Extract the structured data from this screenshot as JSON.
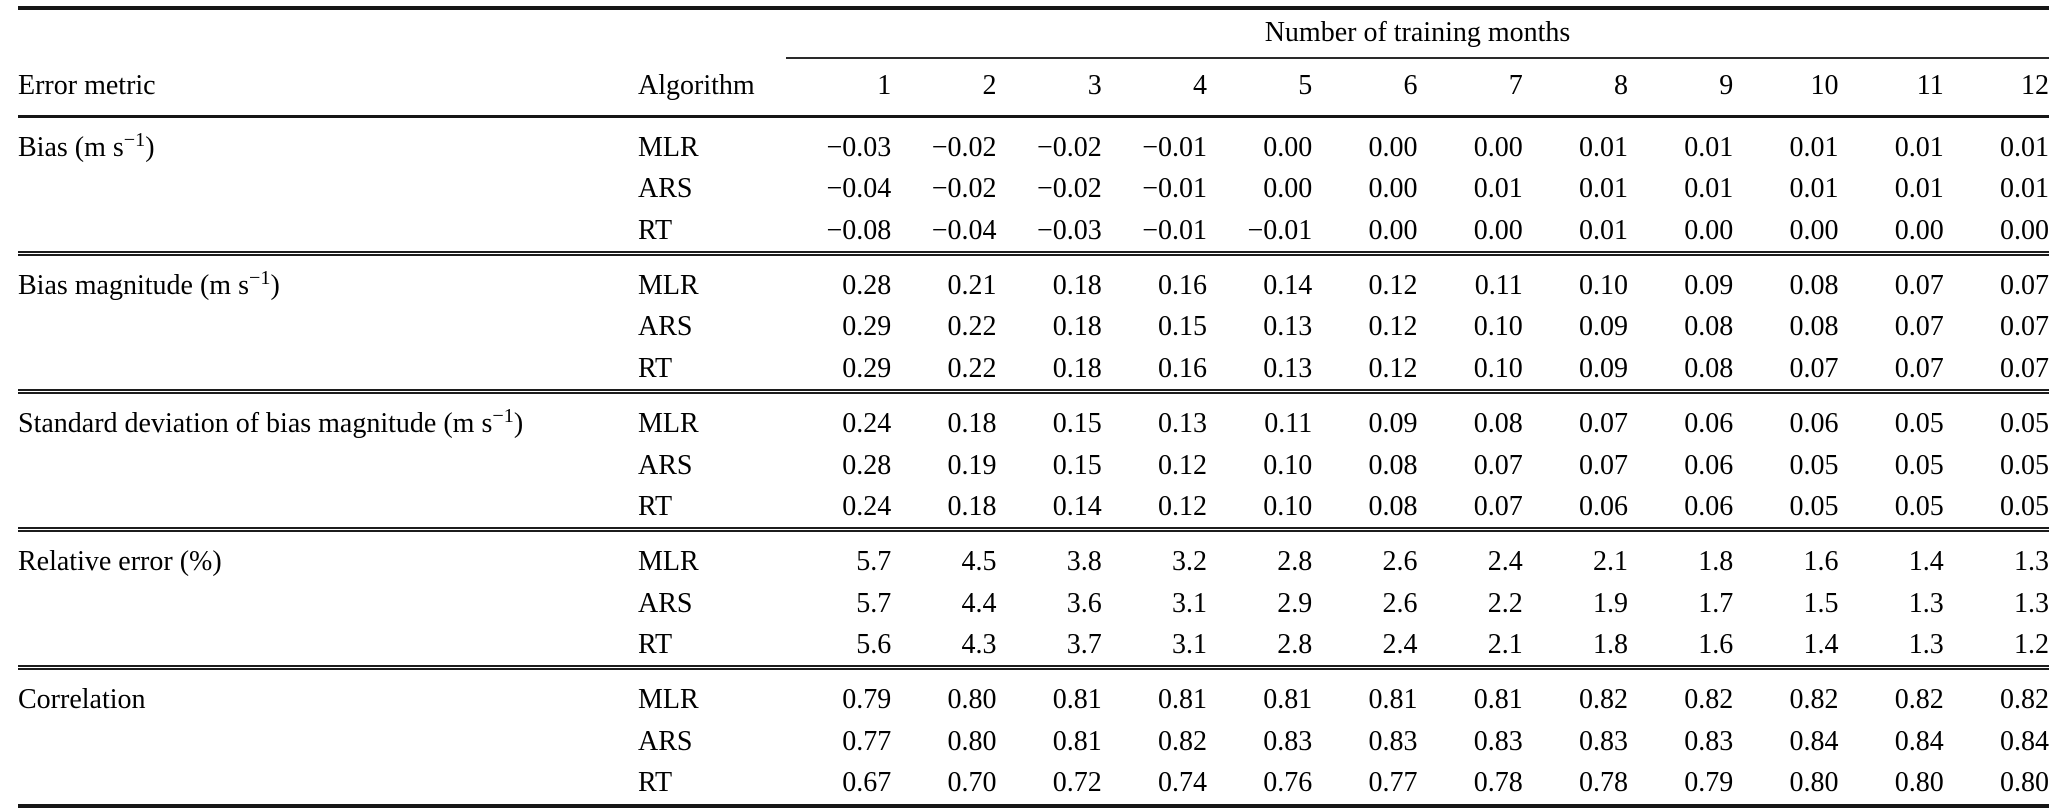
{
  "colors": {
    "background": "#ffffff",
    "text": "#000000",
    "rule": "#161616"
  },
  "chart_data": {
    "type": "table",
    "col_group_header": "Number of training months",
    "col_headers": {
      "metric": "Error metric",
      "algorithm": "Algorithm",
      "months": [
        "1",
        "2",
        "3",
        "4",
        "5",
        "6",
        "7",
        "8",
        "9",
        "10",
        "11",
        "12"
      ]
    },
    "groups": [
      {
        "metric_full": "Bias (m s⁻¹)",
        "metric_pre": "Bias (m s",
        "metric_sup": "−1",
        "metric_post": ")",
        "rows": [
          {
            "algorithm": "MLR",
            "values": [
              "−0.03",
              "−0.02",
              "−0.02",
              "−0.01",
              "0.00",
              "0.00",
              "0.00",
              "0.01",
              "0.01",
              "0.01",
              "0.01",
              "0.01"
            ]
          },
          {
            "algorithm": "ARS",
            "values": [
              "−0.04",
              "−0.02",
              "−0.02",
              "−0.01",
              "0.00",
              "0.00",
              "0.01",
              "0.01",
              "0.01",
              "0.01",
              "0.01",
              "0.01"
            ]
          },
          {
            "algorithm": "RT",
            "values": [
              "−0.08",
              "−0.04",
              "−0.03",
              "−0.01",
              "−0.01",
              "0.00",
              "0.00",
              "0.01",
              "0.00",
              "0.00",
              "0.00",
              "0.00"
            ]
          }
        ]
      },
      {
        "metric_full": "Bias magnitude (m s⁻¹)",
        "metric_pre": "Bias magnitude (m s",
        "metric_sup": "−1",
        "metric_post": ")",
        "rows": [
          {
            "algorithm": "MLR",
            "values": [
              "0.28",
              "0.21",
              "0.18",
              "0.16",
              "0.14",
              "0.12",
              "0.11",
              "0.10",
              "0.09",
              "0.08",
              "0.07",
              "0.07"
            ]
          },
          {
            "algorithm": "ARS",
            "values": [
              "0.29",
              "0.22",
              "0.18",
              "0.15",
              "0.13",
              "0.12",
              "0.10",
              "0.09",
              "0.08",
              "0.08",
              "0.07",
              "0.07"
            ]
          },
          {
            "algorithm": "RT",
            "values": [
              "0.29",
              "0.22",
              "0.18",
              "0.16",
              "0.13",
              "0.12",
              "0.10",
              "0.09",
              "0.08",
              "0.07",
              "0.07",
              "0.07"
            ]
          }
        ]
      },
      {
        "metric_full": "Standard deviation of bias magnitude (m s⁻¹)",
        "metric_pre": "Standard deviation of bias magnitude (m s",
        "metric_sup": "−1",
        "metric_post": ")",
        "rows": [
          {
            "algorithm": "MLR",
            "values": [
              "0.24",
              "0.18",
              "0.15",
              "0.13",
              "0.11",
              "0.09",
              "0.08",
              "0.07",
              "0.06",
              "0.06",
              "0.05",
              "0.05"
            ]
          },
          {
            "algorithm": "ARS",
            "values": [
              "0.28",
              "0.19",
              "0.15",
              "0.12",
              "0.10",
              "0.08",
              "0.07",
              "0.07",
              "0.06",
              "0.05",
              "0.05",
              "0.05"
            ]
          },
          {
            "algorithm": "RT",
            "values": [
              "0.24",
              "0.18",
              "0.14",
              "0.12",
              "0.10",
              "0.08",
              "0.07",
              "0.06",
              "0.06",
              "0.05",
              "0.05",
              "0.05"
            ]
          }
        ]
      },
      {
        "metric_full": "Relative error (%)",
        "metric_pre": "Relative error (%)",
        "metric_sup": "",
        "metric_post": "",
        "rows": [
          {
            "algorithm": "MLR",
            "values": [
              "5.7",
              "4.5",
              "3.8",
              "3.2",
              "2.8",
              "2.6",
              "2.4",
              "2.1",
              "1.8",
              "1.6",
              "1.4",
              "1.3"
            ]
          },
          {
            "algorithm": "ARS",
            "values": [
              "5.7",
              "4.4",
              "3.6",
              "3.1",
              "2.9",
              "2.6",
              "2.2",
              "1.9",
              "1.7",
              "1.5",
              "1.3",
              "1.3"
            ]
          },
          {
            "algorithm": "RT",
            "values": [
              "5.6",
              "4.3",
              "3.7",
              "3.1",
              "2.8",
              "2.4",
              "2.1",
              "1.8",
              "1.6",
              "1.4",
              "1.3",
              "1.2"
            ]
          }
        ]
      },
      {
        "metric_full": "Correlation",
        "metric_pre": "Correlation",
        "metric_sup": "",
        "metric_post": "",
        "rows": [
          {
            "algorithm": "MLR",
            "values": [
              "0.79",
              "0.80",
              "0.81",
              "0.81",
              "0.81",
              "0.81",
              "0.81",
              "0.82",
              "0.82",
              "0.82",
              "0.82",
              "0.82"
            ]
          },
          {
            "algorithm": "ARS",
            "values": [
              "0.77",
              "0.80",
              "0.81",
              "0.82",
              "0.83",
              "0.83",
              "0.83",
              "0.83",
              "0.83",
              "0.84",
              "0.84",
              "0.84"
            ]
          },
          {
            "algorithm": "RT",
            "values": [
              "0.67",
              "0.70",
              "0.72",
              "0.74",
              "0.76",
              "0.77",
              "0.78",
              "0.78",
              "0.79",
              "0.80",
              "0.80",
              "0.80"
            ]
          }
        ]
      }
    ]
  }
}
